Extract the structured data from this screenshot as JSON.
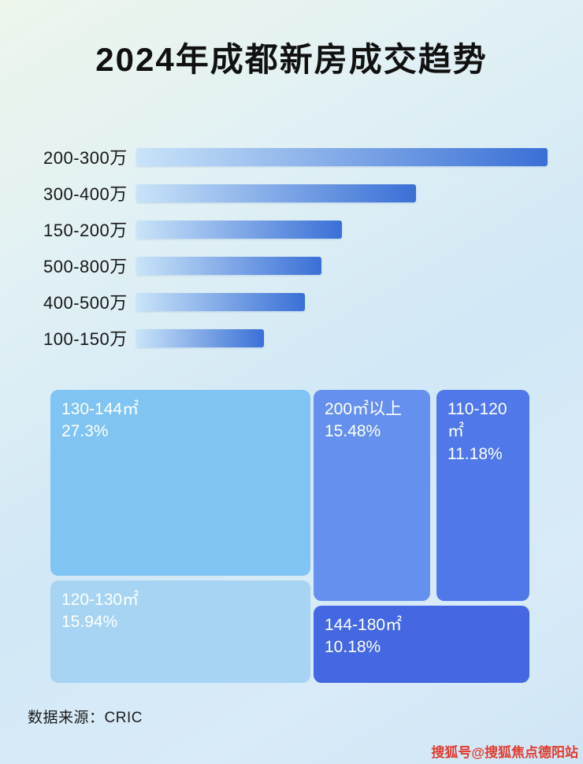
{
  "title": "2024年成都新房成交趋势",
  "footer": {
    "source": "数据来源：CRIC"
  },
  "watermark": "搜狐号@搜狐焦点德阳站",
  "colors": {
    "title_color": "#111111",
    "bar_start": "#c9e4f9",
    "bar_end": "#3a6fd6",
    "watermark_color": "#e23b2e"
  },
  "chart_data": [
    {
      "type": "bar",
      "orientation": "horizontal",
      "title": "2024年成都新房成交趋势",
      "categories": [
        "200-300万",
        "300-400万",
        "150-200万",
        "500-800万",
        "400-500万",
        "100-150万"
      ],
      "values": [
        100,
        68,
        50,
        45,
        41,
        31
      ],
      "value_note": "relative bar lengths in percent of longest bar; no numeric axis shown in image",
      "xlabel": "",
      "ylabel": "",
      "grid": false,
      "legend": false
    },
    {
      "type": "treemap",
      "title": "",
      "items": [
        {
          "label": "130-144㎡",
          "value": 27.3,
          "display": "27.3%",
          "color": "#7fc4f2"
        },
        {
          "label": "120-130㎡",
          "value": 15.94,
          "display": "15.94%",
          "color": "#a6d4f2"
        },
        {
          "label": "200㎡以上",
          "value": 15.48,
          "display": "15.48%",
          "color": "#6690ee"
        },
        {
          "label": "110-120㎡",
          "value": 11.18,
          "display": "11.18%",
          "color": "#5078e9"
        },
        {
          "label": "144-180㎡",
          "value": 10.18,
          "display": "10.18%",
          "color": "#4468e2"
        }
      ]
    }
  ]
}
